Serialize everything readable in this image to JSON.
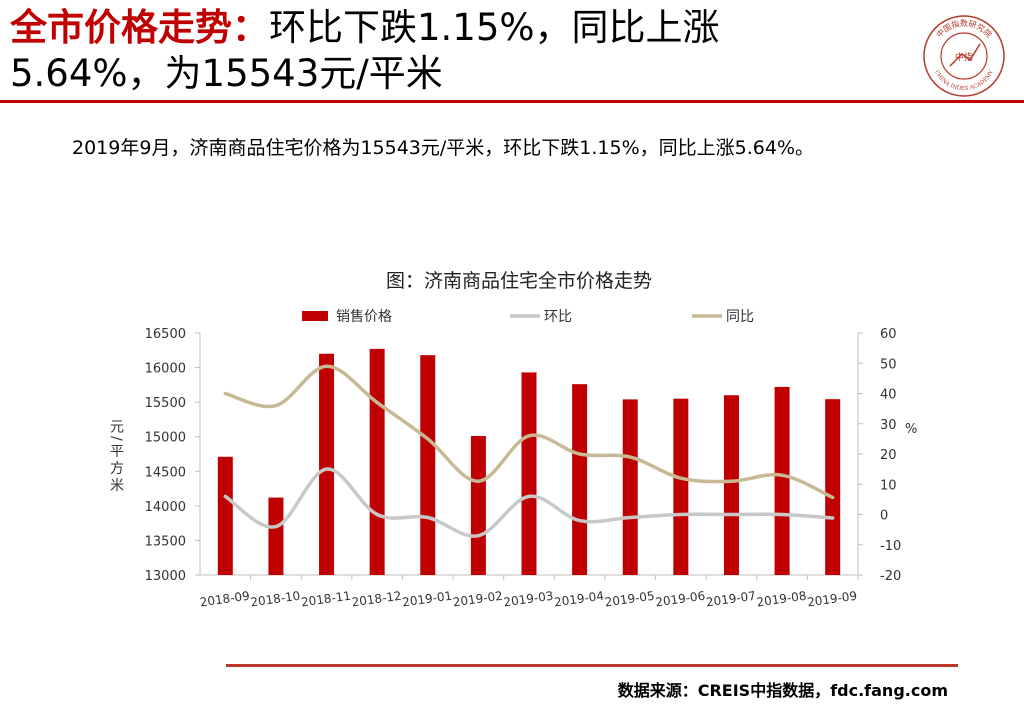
{
  "header": {
    "title_red": "全市价格走势：",
    "title_rest": "环比下跌1.15%，同比上涨",
    "title_line2": "5.64%，为15543元/平米"
  },
  "logo": {
    "text_top": "中国指数研究院",
    "text_bottom": "CHINA INDEX ACADEMY",
    "center_text": "中指"
  },
  "summary": "2019年9月，济南商品住宅价格为15543元/平米，环比下跌1.15%，同比上涨5.64%。",
  "colors": {
    "accent": "#c00000",
    "bar": "#c00000",
    "mom_line": "#c8c8c8",
    "yoy_line": "#c8b995",
    "source_rule": "#b8382c"
  },
  "chart_data": {
    "type": "bar",
    "title": "图：济南商品住宅全市价格走势",
    "categories": [
      "2018-09",
      "2018-10",
      "2018-11",
      "2018-12",
      "2019-01",
      "2019-02",
      "2019-03",
      "2019-04",
      "2019-05",
      "2019-06",
      "2019-07",
      "2019-08",
      "2019-09"
    ],
    "series": [
      {
        "name": "销售价格",
        "type": "bar",
        "axis": "left",
        "values": [
          14710,
          14120,
          16200,
          16270,
          16180,
          15010,
          15930,
          15760,
          15540,
          15550,
          15600,
          15720,
          15543
        ]
      },
      {
        "name": "环比",
        "type": "line",
        "axis": "right",
        "values": [
          6,
          -4,
          15,
          0,
          -1,
          -7,
          6,
          -2,
          -1,
          0,
          0,
          0,
          -1.15
        ]
      },
      {
        "name": "同比",
        "type": "line",
        "axis": "right",
        "values": [
          40,
          36,
          49,
          37,
          25,
          11,
          26,
          20,
          19,
          12,
          11,
          13,
          5.64
        ]
      }
    ],
    "ylabel": "元/平方米",
    "ylabel_right": "%",
    "ylim": [
      13000,
      16500
    ],
    "yticks": [
      "13000",
      "13500",
      "14000",
      "14500",
      "15000",
      "15500",
      "16000",
      "16500"
    ],
    "ylim_right": [
      -20,
      60
    ],
    "yticks_right": [
      "-20",
      "-10",
      "0",
      "10",
      "20",
      "30",
      "40",
      "50",
      "60"
    ],
    "grid": false,
    "legend_position": "top"
  },
  "source": "数据来源：CREIS中指数据，fdc.fang.com"
}
